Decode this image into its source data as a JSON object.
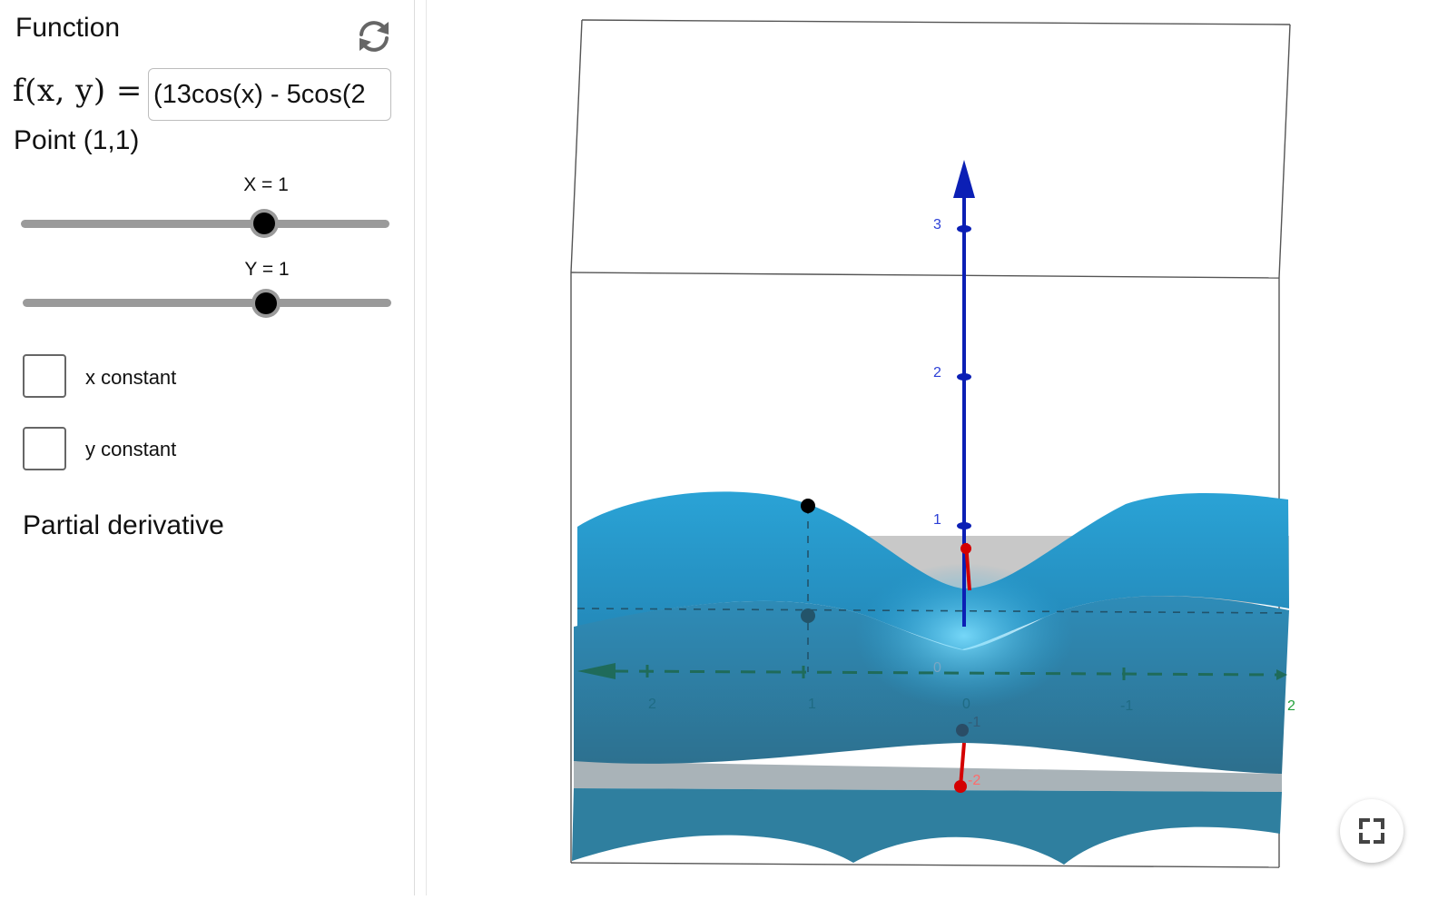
{
  "panel": {
    "function_title": "Function",
    "fxy_label": "f(x, y) =",
    "function_input": "(13cos(x) - 5cos(2",
    "point_label": "Point (1,1)",
    "slider_x": {
      "label": "X = 1",
      "value": 1
    },
    "slider_y": {
      "label": "Y = 1",
      "value": 1
    },
    "checkbox_x": {
      "label": "x constant",
      "checked": false
    },
    "checkbox_y": {
      "label": "y constant",
      "checked": false
    },
    "partial_title": "Partial derivative"
  },
  "graph": {
    "z_ticks": [
      "3",
      "2",
      "1",
      "0",
      "-1",
      "-2"
    ],
    "x_ticks": [
      "2",
      "1",
      "0",
      "-1"
    ],
    "y_axis_end": "2",
    "colors": {
      "surface": "#2e9bc9",
      "z_axis": "#0b1fb5",
      "x_axis": "#1f6b5a",
      "vector": "#d40000",
      "box_edge": "#555555"
    }
  },
  "icons": {
    "refresh": "refresh-icon",
    "fullscreen": "fullscreen-icon"
  }
}
